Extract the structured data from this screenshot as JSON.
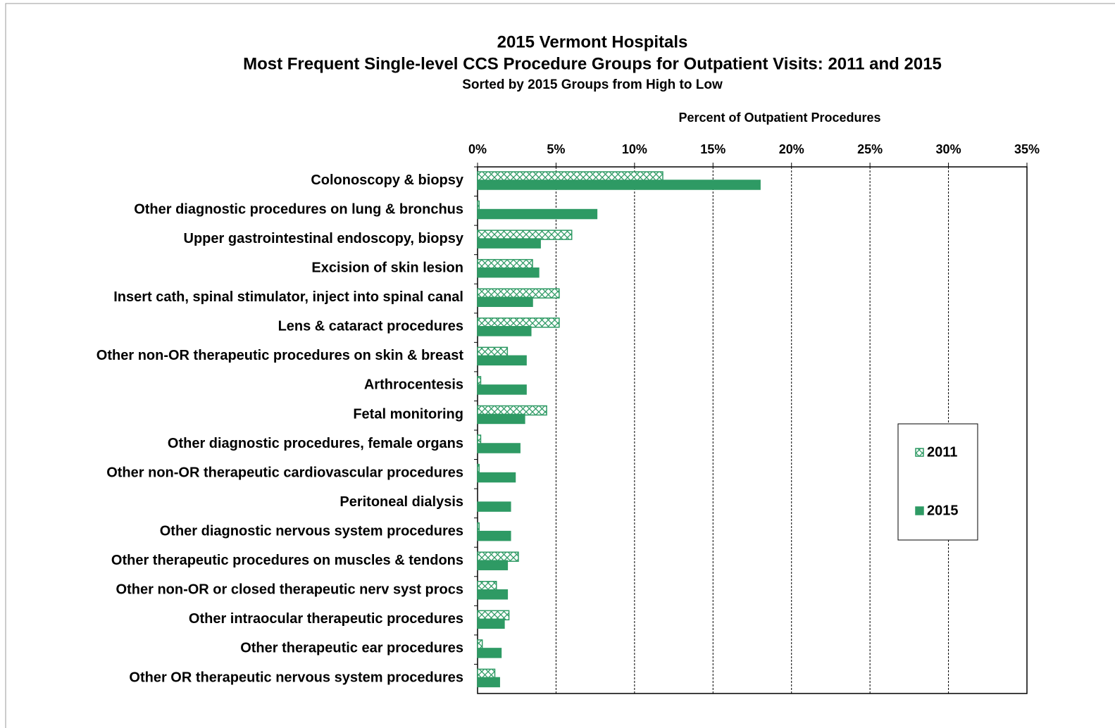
{
  "chart_data": {
    "type": "barh",
    "title": "2015 Vermont Hospitals",
    "subtitle": "Most Frequent Single-level CCS Procedure Groups for Outpatient Visits:  2011 and 2015",
    "sort_note": "Sorted by 2015 Groups from High to Low",
    "x_label": "Percent of Outpatient Procedures",
    "categories": [
      "Colonoscopy & biopsy",
      "Other diagnostic procedures on lung & bronchus",
      "Upper gastrointestinal endoscopy, biopsy",
      "Excision of skin lesion",
      "Insert cath, spinal stimulator, inject into spinal canal",
      "Lens & cataract procedures",
      "Other non-OR therapeutic procedures on skin & breast",
      "Arthrocentesis",
      "Fetal monitoring",
      "Other diagnostic procedures, female organs",
      "Other non-OR therapeutic cardiovascular procedures",
      "Peritoneal dialysis",
      "Other diagnostic nervous system procedures",
      "Other therapeutic procedures on muscles & tendons",
      "Other non-OR or closed therapeutic nerv syst procs",
      "Other intraocular therapeutic procedures",
      "Other therapeutic ear procedures",
      "Other OR therapeutic nervous system procedures"
    ],
    "series": [
      {
        "name": "2011",
        "color": "#2e9a64",
        "pattern": "hatch",
        "values": [
          11.8,
          0.1,
          6.0,
          3.5,
          5.2,
          5.2,
          1.9,
          0.2,
          4.4,
          0.2,
          0.1,
          0,
          0.1,
          2.6,
          1.2,
          2.0,
          0.3,
          1.1
        ]
      },
      {
        "name": "2015",
        "color": "#2e9a64",
        "pattern": "solid",
        "values": [
          18.0,
          7.6,
          4.0,
          3.9,
          3.5,
          3.4,
          3.1,
          3.1,
          3.0,
          2.7,
          2.4,
          2.1,
          2.1,
          1.9,
          1.9,
          1.7,
          1.5,
          1.4
        ]
      }
    ],
    "xlim": [
      0,
      35
    ],
    "xticks": [
      {
        "value": 0,
        "label": "0%"
      },
      {
        "value": 5,
        "label": "5%"
      },
      {
        "value": 10,
        "label": "10%"
      },
      {
        "value": 15,
        "label": "15%"
      },
      {
        "value": 20,
        "label": "20%"
      },
      {
        "value": 25,
        "label": "25%"
      },
      {
        "value": 30,
        "label": "30%"
      },
      {
        "value": 35,
        "label": "35%"
      }
    ],
    "grid": true,
    "legend": "right"
  }
}
